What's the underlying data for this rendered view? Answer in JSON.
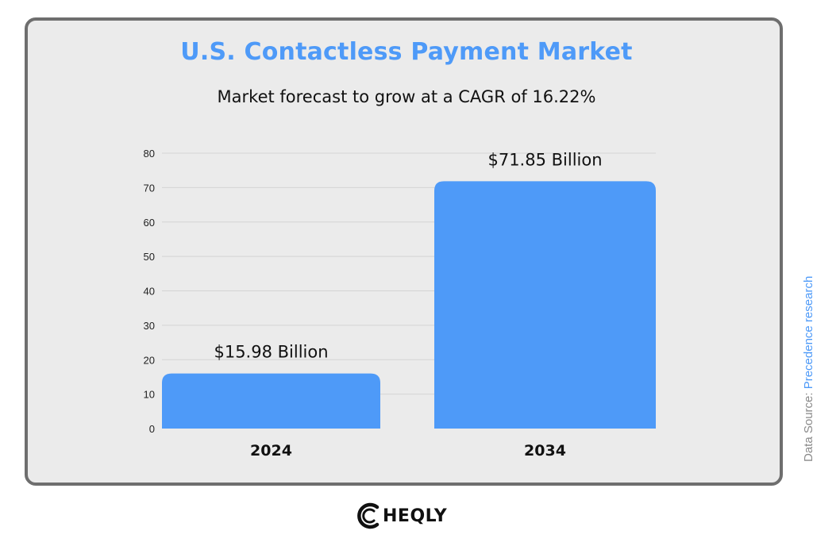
{
  "colors": {
    "accent": "#4e9af8",
    "bar": "#4e9af8",
    "text": "#111111",
    "gridline": "#d4d4d4",
    "source_label": "#8a8a8a",
    "card_border": "#6e6e6e",
    "card_bg": "#ebebeb"
  },
  "chart_data": {
    "type": "bar",
    "title": "U.S. Contactless Payment Market",
    "subtitle": "Market forecast to grow at a CAGR of 16.22%",
    "categories": [
      "2024",
      "2034"
    ],
    "values": [
      15.98,
      71.85
    ],
    "data_labels": [
      "$15.98  Billion",
      "$71.85 Billion"
    ],
    "xlabel": "",
    "ylabel": "",
    "ylim": [
      0,
      80
    ],
    "yticks": [
      0,
      10,
      20,
      30,
      40,
      50,
      60,
      70,
      80
    ],
    "grid": true,
    "legend": "none"
  },
  "source": {
    "prefix": "Data Source: ",
    "name": "Precedence research"
  },
  "logo": {
    "icon": "cheqly-c-logo-icon",
    "text": "HEQLY"
  }
}
